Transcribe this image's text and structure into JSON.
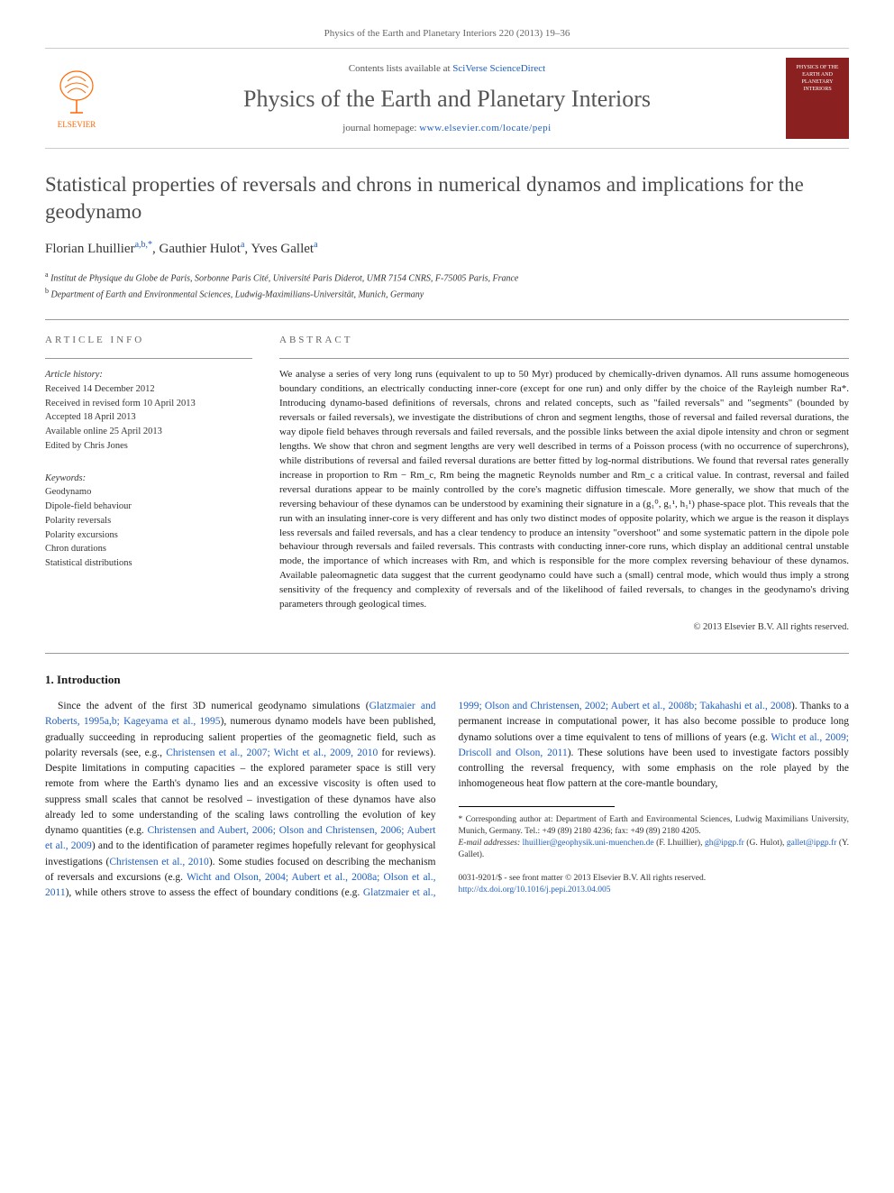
{
  "header": {
    "citation": "Physics of the Earth and Planetary Interiors 220 (2013) 19–36",
    "contents_prefix": "Contents lists available at ",
    "contents_link": "SciVerse ScienceDirect",
    "journal_name": "Physics of the Earth and Planetary Interiors",
    "homepage_prefix": "journal homepage: ",
    "homepage_url": "www.elsevier.com/locate/pepi",
    "elsevier_label": "ELSEVIER",
    "cover_text": "PHYSICS OF THE EARTH AND PLANETARY INTERIORS"
  },
  "title": "Statistical properties of reversals and chrons in numerical dynamos and implications for the geodynamo",
  "authors_html": "Florian Lhuillier <sup>a,b,*</sup>, Gauthier Hulot <sup>a</sup>, Yves Gallet <sup>a</sup>",
  "affiliations": [
    {
      "sup": "a",
      "text": "Institut de Physique du Globe de Paris, Sorbonne Paris Cité, Université Paris Diderot, UMR 7154 CNRS, F-75005 Paris, France"
    },
    {
      "sup": "b",
      "text": "Department of Earth and Environmental Sciences, Ludwig-Maximilians-Universität, Munich, Germany"
    }
  ],
  "article_info": {
    "heading": "ARTICLE INFO",
    "history_label": "Article history:",
    "history": [
      "Received 14 December 2012",
      "Received in revised form 10 April 2013",
      "Accepted 18 April 2013",
      "Available online 25 April 2013",
      "Edited by Chris Jones"
    ],
    "keywords_label": "Keywords:",
    "keywords": [
      "Geodynamo",
      "Dipole-field behaviour",
      "Polarity reversals",
      "Polarity excursions",
      "Chron durations",
      "Statistical distributions"
    ]
  },
  "abstract": {
    "heading": "ABSTRACT",
    "text": "We analyse a series of very long runs (equivalent to up to 50 Myr) produced by chemically-driven dynamos. All runs assume homogeneous boundary conditions, an electrically conducting inner-core (except for one run) and only differ by the choice of the Rayleigh number Ra*. Introducing dynamo-based definitions of reversals, chrons and related concepts, such as \"failed reversals\" and \"segments\" (bounded by reversals or failed reversals), we investigate the distributions of chron and segment lengths, those of reversal and failed reversal durations, the way dipole field behaves through reversals and failed reversals, and the possible links between the axial dipole intensity and chron or segment lengths. We show that chron and segment lengths are very well described in terms of a Poisson process (with no occurrence of superchrons), while distributions of reversal and failed reversal durations are better fitted by log-normal distributions. We found that reversal rates generally increase in proportion to Rm − Rm_c, Rm being the magnetic Reynolds number and Rm_c a critical value. In contrast, reversal and failed reversal durations appear to be mainly controlled by the core's magnetic diffusion timescale. More generally, we show that much of the reversing behaviour of these dynamos can be understood by examining their signature in a (g₁⁰, g₁¹, h₁¹) phase-space plot. This reveals that the run with an insulating inner-core is very different and has only two distinct modes of opposite polarity, which we argue is the reason it displays less reversals and failed reversals, and has a clear tendency to produce an intensity \"overshoot\" and some systematic pattern in the dipole pole behaviour through reversals and failed reversals. This contrasts with conducting inner-core runs, which display an additional central unstable mode, the importance of which increases with Rm, and which is responsible for the more complex reversing behaviour of these dynamos. Available paleomagnetic data suggest that the current geodynamo could have such a (small) central mode, which would thus imply a strong sensitivity of the frequency and complexity of reversals and of the likelihood of failed reversals, to changes in the geodynamo's driving parameters through geological times.",
    "copyright": "© 2013 Elsevier B.V. All rights reserved."
  },
  "body": {
    "section_heading": "1. Introduction",
    "paragraph": "Since the advent of the first 3D numerical geodynamo simulations (Glatzmaier and Roberts, 1995a,b; Kageyama et al., 1995), numerous dynamo models have been published, gradually succeeding in reproducing salient properties of the geomagnetic field, such as polarity reversals (see, e.g., Christensen et al., 2007; Wicht et al., 2009, 2010 for reviews). Despite limitations in computing capacities – the explored parameter space is still very remote from where the Earth's dynamo lies and an excessive viscosity is often used to suppress small scales that cannot be resolved – investigation of these dynamos have also already led to some understanding of the scaling laws controlling the evolution of key dynamo quantities (e.g. Christensen and Aubert, 2006; Olson and Christensen, 2006; Aubert et al., 2009) and to the identification of parameter regimes hopefully relevant for geophysical investigations (Christensen et al., 2010). Some studies focused on describing the mechanism of reversals and excursions (e.g. Wicht and Olson, 2004; Aubert et al., 2008a; Olson et al., 2011), while others strove to assess the effect of boundary conditions (e.g. Glatzmaier et al., 1999; Olson and Christensen, 2002; Aubert et al., 2008b; Takahashi et al., 2008). Thanks to a permanent increase in computational power, it has also become possible to produce long dynamo solutions over a time equivalent to tens of millions of years (e.g. Wicht et al., 2009; Driscoll and Olson, 2011). These solutions have been used to investigate factors possibly controlling the reversal frequency, with some emphasis on the role played by the inhomogeneous heat flow pattern at the core-mantle boundary,"
  },
  "footnotes": {
    "corresponding": "* Corresponding author at: Department of Earth and Environmental Sciences, Ludwig Maximilians University, Munich, Germany. Tel.: +49 (89) 2180 4236; fax: +49 (89) 2180 4205.",
    "emails_label": "E-mail addresses:",
    "emails": "lhuillier@geophysik.uni-muenchen.de (F. Lhuillier), gh@ipgp.fr (G. Hulot), gallet@ipgp.fr (Y. Gallet)."
  },
  "footer": {
    "line1": "0031-9201/$ - see front matter © 2013 Elsevier B.V. All rights reserved.",
    "doi": "http://dx.doi.org/10.1016/j.pepi.2013.04.005"
  },
  "colors": {
    "link": "#2060c0",
    "elsevier_orange": "#ff6600",
    "cover_bg": "#8b2020",
    "text": "#1a1a1a",
    "muted": "#666666",
    "rule": "#999999"
  }
}
